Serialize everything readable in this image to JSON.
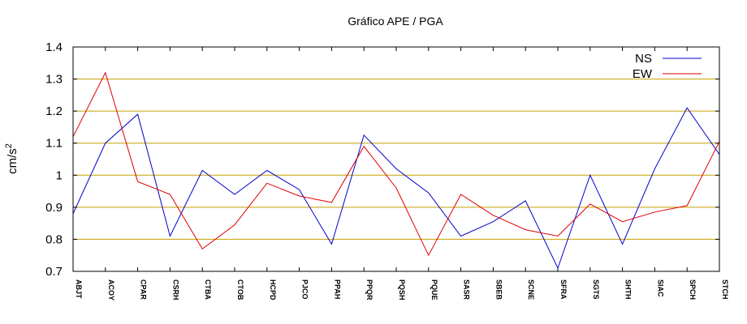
{
  "chart_data": {
    "type": "line",
    "title": "Gráfico  APE / PGA",
    "ylabel_base": "cm/s",
    "ylabel_sup": "2",
    "xlabel": "",
    "ylim": [
      0.7,
      1.4
    ],
    "yticks": [
      "0.7",
      "0.8",
      "0.9",
      "1",
      "1.1",
      "1.2",
      "1.3",
      "1.4"
    ],
    "grid": true,
    "grid_color": "#c8a000",
    "legend_position": "top-right",
    "categories": [
      "ABJT",
      "ACOY",
      "CPAR",
      "CSRH",
      "CTBA",
      "CTOB",
      "HCPD",
      "PJCO",
      "PPAH",
      "PPQR",
      "PQSH",
      "PQUE",
      "SASR",
      "SBEB",
      "SCNE",
      "SFRA",
      "SGTS",
      "SHTH",
      "SIAC",
      "SPCH",
      "STCH"
    ],
    "series": [
      {
        "name": "NS",
        "color": "#0000cc",
        "values": [
          0.88,
          1.1,
          1.19,
          0.81,
          1.015,
          0.94,
          1.015,
          0.955,
          0.785,
          1.125,
          1.02,
          0.945,
          0.81,
          0.855,
          0.92,
          0.71,
          1.0,
          0.785,
          1.02,
          1.21,
          1.065
        ]
      },
      {
        "name": "EW",
        "color": "#dd0000",
        "values": [
          1.12,
          1.32,
          0.98,
          0.94,
          0.77,
          0.845,
          0.975,
          0.935,
          0.915,
          1.09,
          0.96,
          0.75,
          0.94,
          0.875,
          0.83,
          0.81,
          0.91,
          0.855,
          0.885,
          0.905,
          1.105
        ]
      }
    ]
  }
}
